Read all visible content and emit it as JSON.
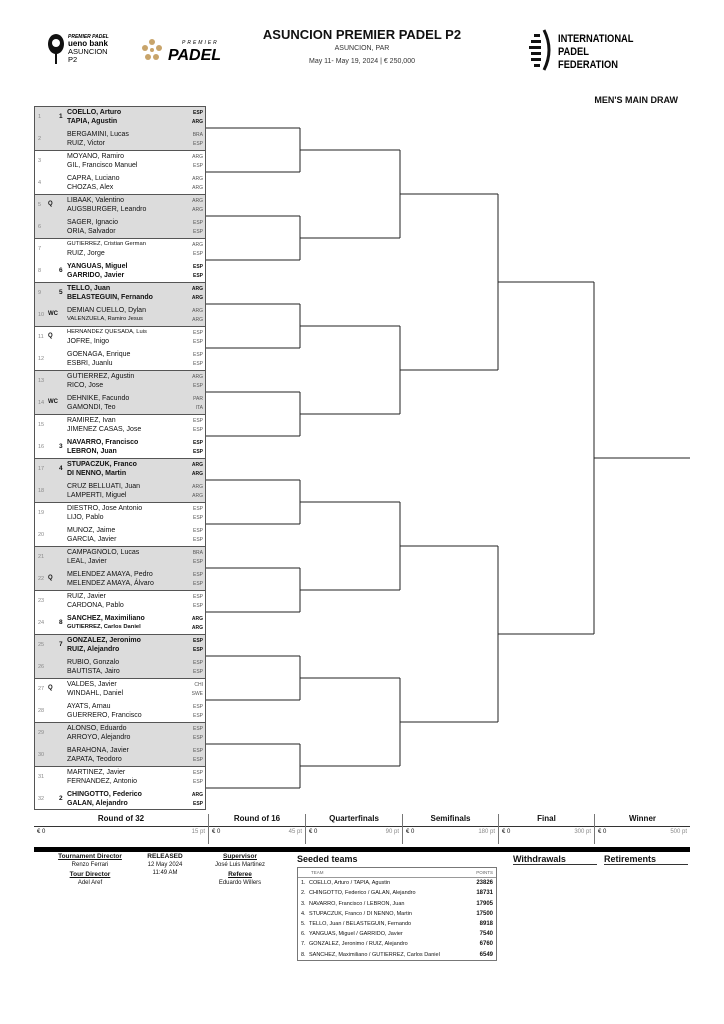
{
  "header": {
    "title": "ASUNCION PREMIER PADEL P2",
    "location": "ASUNCION, PAR",
    "dates_prize": "May 11- May 19, 2024  |  € 250,000",
    "draw_title": "MEN'S MAIN DRAW",
    "logos": {
      "event": "PREMIER PADEL ueno bank ASUNCION P2",
      "premier": "PREMIER PADEL",
      "ipf": "INTERNATIONAL PADEL FEDERATION"
    },
    "gold": "#c8a46a"
  },
  "entries": [
    {
      "num": "1",
      "tag": "",
      "seed": "1",
      "p1": "COELLO, Arturo",
      "c1": "ESP",
      "p2": "TAPIA, Agustin",
      "c2": "ARG",
      "bold": true
    },
    {
      "num": "2",
      "tag": "",
      "seed": "",
      "p1": "BERGAMINI, Lucas",
      "c1": "BRA",
      "p2": "RUIZ, Victor",
      "c2": "ESP"
    },
    {
      "num": "3",
      "tag": "",
      "seed": "",
      "p1": "MOYANO, Ramiro",
      "c1": "ARG",
      "p2": "GIL, Francisco Manuel",
      "c2": "ESP"
    },
    {
      "num": "4",
      "tag": "",
      "seed": "",
      "p1": "CAPRA, Luciano",
      "c1": "ARG",
      "p2": "CHOZAS, Alex",
      "c2": "ARG"
    },
    {
      "num": "5",
      "tag": "Q",
      "seed": "",
      "p1": "LIBAAK, Valentino",
      "c1": "ARG",
      "p2": "AUGSBURGER, Leandro",
      "c2": "ARG"
    },
    {
      "num": "6",
      "tag": "",
      "seed": "",
      "p1": "SAGER, Ignacio",
      "c1": "ESP",
      "p2": "ORIA, Salvador",
      "c2": "ESP"
    },
    {
      "num": "7",
      "tag": "",
      "seed": "",
      "p1": "GUTIERREZ, Cristian German",
      "c1": "ARG",
      "p2": "RUIZ, Jorge",
      "c2": "ESP",
      "small1": true
    },
    {
      "num": "8",
      "tag": "",
      "seed": "6",
      "p1": "YANGUAS, Miguel",
      "c1": "ESP",
      "p2": "GARRIDO, Javier",
      "c2": "ESP",
      "bold": true
    },
    {
      "num": "9",
      "tag": "",
      "seed": "5",
      "p1": "TELLO, Juan",
      "c1": "ARG",
      "p2": "BELASTEGUIN, Fernando",
      "c2": "ARG",
      "bold": true
    },
    {
      "num": "10",
      "tag": "WC",
      "seed": "",
      "p1": "DEMIAN CUELLO, Dylan",
      "c1": "ARG",
      "p2": "VALENZUELA, Ramiro Jesus",
      "c2": "ARG",
      "small2": true
    },
    {
      "num": "11",
      "tag": "Q",
      "seed": "",
      "p1": "HERNANDEZ QUESADA, Luis",
      "c1": "ESP",
      "p2": "JOFRE, Inigo",
      "c2": "ESP",
      "small1": true
    },
    {
      "num": "12",
      "tag": "",
      "seed": "",
      "p1": "GOENAGA, Enrique",
      "c1": "ESP",
      "p2": "ESBRI, Juanlu",
      "c2": "ESP"
    },
    {
      "num": "13",
      "tag": "",
      "seed": "",
      "p1": "GUTIERREZ, Agustin",
      "c1": "ARG",
      "p2": "RICO, Jose",
      "c2": "ESP"
    },
    {
      "num": "14",
      "tag": "WC",
      "seed": "",
      "p1": "DEHNIKE, Facundo",
      "c1": "PAR",
      "p2": "GAMONDI, Teo",
      "c2": "ITA"
    },
    {
      "num": "15",
      "tag": "",
      "seed": "",
      "p1": "RAMIREZ, Ivan",
      "c1": "ESP",
      "p2": "JIMENEZ CASAS, Jose",
      "c2": "ESP"
    },
    {
      "num": "16",
      "tag": "",
      "seed": "3",
      "p1": "NAVARRO, Francisco",
      "c1": "ESP",
      "p2": "LEBRON, Juan",
      "c2": "ESP",
      "bold": true
    },
    {
      "num": "17",
      "tag": "",
      "seed": "4",
      "p1": "STUPACZUK, Franco",
      "c1": "ARG",
      "p2": "DI NENNO, Martin",
      "c2": "ARG",
      "bold": true
    },
    {
      "num": "18",
      "tag": "",
      "seed": "",
      "p1": "CRUZ BELLUATI, Juan",
      "c1": "ARG",
      "p2": "LAMPERTI, Miguel",
      "c2": "ARG"
    },
    {
      "num": "19",
      "tag": "",
      "seed": "",
      "p1": "DIESTRO, Jose Antonio",
      "c1": "ESP",
      "p2": "LIJO, Pablo",
      "c2": "ESP"
    },
    {
      "num": "20",
      "tag": "",
      "seed": "",
      "p1": "MUNOZ, Jaime",
      "c1": "ESP",
      "p2": "GARCIA, Javier",
      "c2": "ESP"
    },
    {
      "num": "21",
      "tag": "",
      "seed": "",
      "p1": "CAMPAGNOLO, Lucas",
      "c1": "BRA",
      "p2": "LEAL, Javier",
      "c2": "ESP"
    },
    {
      "num": "22",
      "tag": "Q",
      "seed": "",
      "p1": "MELENDEZ AMAYA, Pedro",
      "c1": "ESP",
      "p2": "MELENDEZ AMAYA, Álvaro",
      "c2": "ESP"
    },
    {
      "num": "23",
      "tag": "",
      "seed": "",
      "p1": "RUIZ, Javier",
      "c1": "ESP",
      "p2": "CARDONA, Pablo",
      "c2": "ESP"
    },
    {
      "num": "24",
      "tag": "",
      "seed": "8",
      "p1": "SANCHEZ, Maximiliano",
      "c1": "ARG",
      "p2": "GUTIERREZ, Carlos Daniel",
      "c2": "ARG",
      "bold": true,
      "small2": true
    },
    {
      "num": "25",
      "tag": "",
      "seed": "7",
      "p1": "GONZALEZ, Jeronimo",
      "c1": "ESP",
      "p2": "RUIZ, Alejandro",
      "c2": "ESP",
      "bold": true
    },
    {
      "num": "26",
      "tag": "",
      "seed": "",
      "p1": "RUBIO, Gonzalo",
      "c1": "ESP",
      "p2": "BAUTISTA, Jairo",
      "c2": "ESP"
    },
    {
      "num": "27",
      "tag": "Q",
      "seed": "",
      "p1": "VALDES, Javier",
      "c1": "CHI",
      "p2": "WINDAHL, Daniel",
      "c2": "SWE"
    },
    {
      "num": "28",
      "tag": "",
      "seed": "",
      "p1": "AYATS, Arnau",
      "c1": "ESP",
      "p2": "GUERRERO, Francisco",
      "c2": "ESP"
    },
    {
      "num": "29",
      "tag": "",
      "seed": "",
      "p1": "ALONSO, Eduardo",
      "c1": "ESP",
      "p2": "ARROYO, Alejandro",
      "c2": "ESP"
    },
    {
      "num": "30",
      "tag": "",
      "seed": "",
      "p1": "BARAHONA, Javier",
      "c1": "ESP",
      "p2": "ZAPATA, Teodoro",
      "c2": "ESP"
    },
    {
      "num": "31",
      "tag": "",
      "seed": "",
      "p1": "MARTINEZ, Javier",
      "c1": "ESP",
      "p2": "FERNANDEZ, Antonio",
      "c2": "ESP"
    },
    {
      "num": "32",
      "tag": "",
      "seed": "2",
      "p1": "CHINGOTTO, Federico",
      "c1": "ARG",
      "p2": "GALAN, Alejandro",
      "c2": "ESP",
      "bold": true
    }
  ],
  "rounds": [
    {
      "name": "Round of 32",
      "prize": "€ 0",
      "points": "15 pt"
    },
    {
      "name": "Round of 16",
      "prize": "€ 0",
      "points": "45 pt"
    },
    {
      "name": "Quarterfinals",
      "prize": "€ 0",
      "points": "90 pt"
    },
    {
      "name": "Semifinals",
      "prize": "€ 0",
      "points": "180 pt"
    },
    {
      "name": "Final",
      "prize": "€ 0",
      "points": "300 pt"
    },
    {
      "name": "Winner",
      "prize": "€ 0",
      "points": "500 pt"
    }
  ],
  "officials": {
    "tournament_director_label": "Tournament Director",
    "tournament_director": "Renzo Ferrari",
    "tour_director_label": "Tour Director",
    "tour_director": "Adel Aref",
    "released_label": "RELEASED",
    "released_date": "12 May 2024",
    "released_time": "11:49 AM",
    "supervisor_label": "Supervisor",
    "supervisor": "José Luis Martinez",
    "referee_label": "Referee",
    "referee": "Eduardo Willers"
  },
  "seeded": {
    "title": "Seeded teams",
    "col_team": "TEAM",
    "col_points": "POINTS",
    "rows": [
      {
        "n": "1.",
        "team": "COELLO, Arturo / TAPIA, Agustin",
        "pts": "23826"
      },
      {
        "n": "2.",
        "team": "CHINGOTTO, Federico / GALAN, Alejandro",
        "pts": "18731"
      },
      {
        "n": "3.",
        "team": "NAVARRO, Francisco / LEBRON, Juan",
        "pts": "17905"
      },
      {
        "n": "4.",
        "team": "STUPACZUK, Franco / DI NENNO, Martin",
        "pts": "17500"
      },
      {
        "n": "5.",
        "team": "TELLO, Juan / BELASTEGUIN, Fernando",
        "pts": "8918"
      },
      {
        "n": "6.",
        "team": "YANGUAS, Miguel / GARRIDO, Javier",
        "pts": "7540"
      },
      {
        "n": "7.",
        "team": "GONZALEZ, Jeronimo / RUIZ, Alejandro",
        "pts": "6760"
      },
      {
        "n": "8.",
        "team": "SANCHEZ, Maximiliano / GUTIERREZ, Carlos Daniel",
        "pts": "6549"
      }
    ]
  },
  "withdrawals_title": "Withdrawals",
  "retirements_title": "Retirements"
}
